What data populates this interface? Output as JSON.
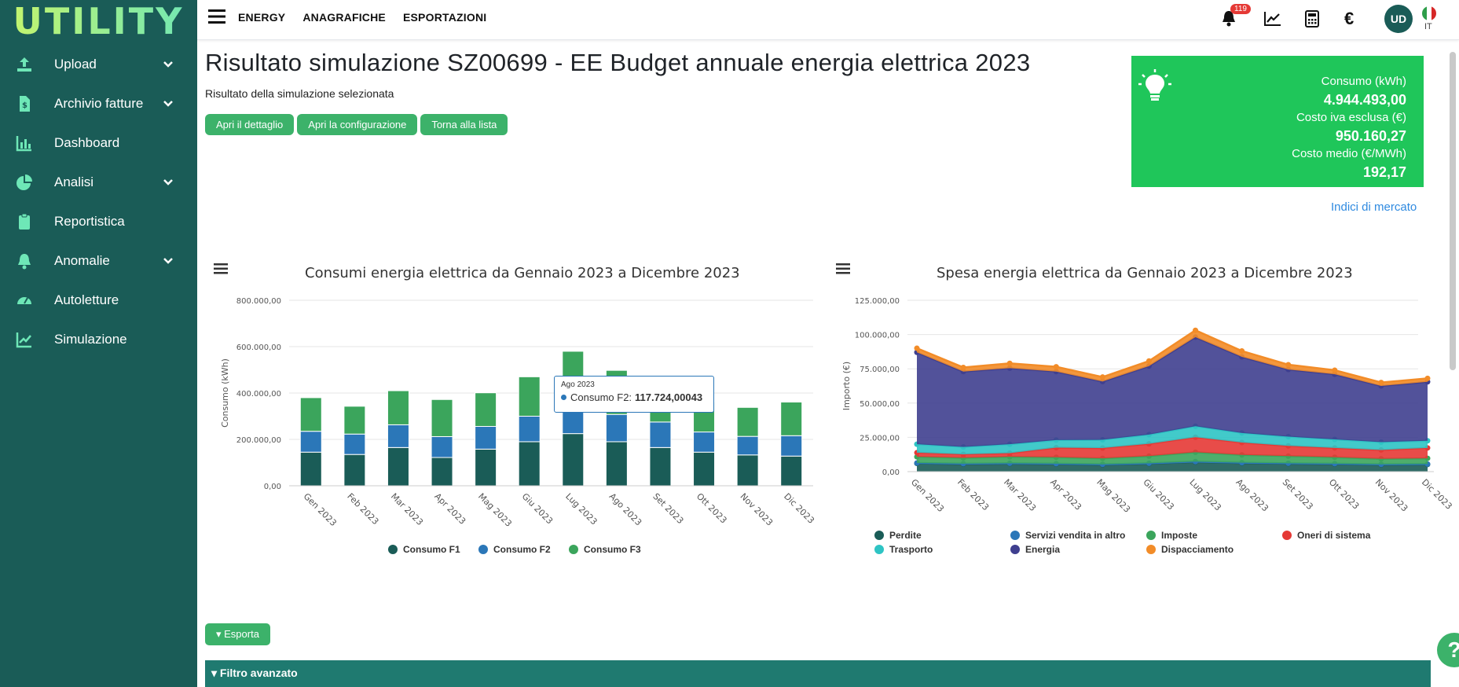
{
  "app": {
    "logo": "UTILITY"
  },
  "sidebar": {
    "items": [
      {
        "label": "Upload",
        "icon": "upload-icon",
        "expandable": true
      },
      {
        "label": "Archivio fatture",
        "icon": "invoice-icon",
        "expandable": true
      },
      {
        "label": "Dashboard",
        "icon": "bar-chart-icon",
        "expandable": false
      },
      {
        "label": "Analisi",
        "icon": "pie-chart-icon",
        "expandable": true
      },
      {
        "label": "Reportistica",
        "icon": "clipboard-icon",
        "expandable": false
      },
      {
        "label": "Anomalie",
        "icon": "bell-icon",
        "expandable": true
      },
      {
        "label": "Autoletture",
        "icon": "gauge-icon",
        "expandable": false
      },
      {
        "label": "Simulazione",
        "icon": "trend-icon",
        "expandable": false
      }
    ]
  },
  "topbar": {
    "menu": [
      "ENERGY",
      "ANAGRAFICHE",
      "ESPORTAZIONI"
    ],
    "notifications": "119",
    "avatar": "UD",
    "lang": "IT"
  },
  "page": {
    "title": "Risultato simulazione SZ00699 - EE Budget annuale energia elettrica 2023",
    "subtitle": "Risultato della simulazione selezionata",
    "buttons": [
      "Apri il dettaglio",
      "Apri la configurazione",
      "Torna alla lista"
    ],
    "market_link": "Indici di mercato",
    "export_label": "Esporta",
    "filter_label": "Filtro avanzato"
  },
  "kpi": {
    "consumo_label": "Consumo (kWh)",
    "consumo_value": "4.944.493,00",
    "costo_label": "Costo iva esclusa (€)",
    "costo_value": "950.160,27",
    "medio_label": "Costo medio (€/MWh)",
    "medio_value": "192,17"
  },
  "chart_data": [
    {
      "type": "bar",
      "stacked": true,
      "title": "Consumi energia elettrica da Gennaio 2023 a Dicembre 2023",
      "ylabel": "Consumo (kWh)",
      "ylim": [
        0,
        800000
      ],
      "yticks": [
        "0,00",
        "200.000,00",
        "400.000,00",
        "600.000,00",
        "800.000,00"
      ],
      "categories": [
        "Gen 2023",
        "Feb 2023",
        "Mar 2023",
        "Apr 2023",
        "Mag 2023",
        "Giu 2023",
        "Lug 2023",
        "Ago 2023",
        "Set 2023",
        "Ott 2023",
        "Nov 2023",
        "Dic 2023"
      ],
      "series": [
        {
          "name": "Consumo F1",
          "color": "#1a5c57",
          "values": [
            145000,
            135000,
            165000,
            122000,
            158000,
            190000,
            225000,
            190000,
            165000,
            145000,
            133000,
            128000
          ]
        },
        {
          "name": "Consumo F2",
          "color": "#2b77b8",
          "values": [
            90000,
            88000,
            98000,
            90000,
            98000,
            110000,
            110000,
            117724,
            110000,
            87000,
            80000,
            88000
          ]
        },
        {
          "name": "Consumo F3",
          "color": "#3ba55c",
          "values": [
            145000,
            120000,
            147000,
            160000,
            145000,
            170000,
            245000,
            190000,
            148000,
            130000,
            125000,
            145000
          ]
        }
      ],
      "legend": "bottom",
      "tooltip": {
        "category": "Ago 2023",
        "series": "Consumo F2",
        "value": "117.724,00043"
      }
    },
    {
      "type": "area",
      "stacked": true,
      "title": "Spesa energia elettrica da Gennaio 2023 a Dicembre 2023",
      "ylabel": "Importo (€)",
      "ylim": [
        0,
        125000
      ],
      "yticks": [
        "0,00",
        "25.000,00",
        "50.000,00",
        "75.000,00",
        "100.000,00",
        "125.000,00"
      ],
      "categories": [
        "Gen 2023",
        "Feb 2023",
        "Mar 2023",
        "Apr 2023",
        "Mag 2023",
        "Giu 2023",
        "Lug 2023",
        "Ago 2023",
        "Set 2023",
        "Ott 2023",
        "Nov 2023",
        "Dic 2023"
      ],
      "series": [
        {
          "name": "Perdite",
          "color": "#1a5c57",
          "values": [
            6000,
            5500,
            5800,
            5500,
            5000,
            5800,
            7000,
            6200,
            5800,
            5500,
            5000,
            5200
          ]
        },
        {
          "name": "Servizi vendita in altro",
          "color": "#2b77b8",
          "values": [
            300,
            300,
            300,
            300,
            300,
            300,
            300,
            300,
            300,
            300,
            300,
            300
          ]
        },
        {
          "name": "Imposte",
          "color": "#3ba55c",
          "values": [
            4500,
            4200,
            4700,
            4700,
            4400,
            5200,
            6800,
            5700,
            5200,
            4700,
            4000,
            4200
          ]
        },
        {
          "name": "Oneri di sistema",
          "color": "#e53935",
          "values": [
            3000,
            2600,
            2700,
            7000,
            7500,
            9000,
            11000,
            9000,
            7500,
            6800,
            6500,
            7600
          ]
        },
        {
          "name": "Trasporto",
          "color": "#2ec4c4",
          "values": [
            6200,
            5400,
            6500,
            5500,
            6000,
            6700,
            8000,
            7000,
            6700,
            6200,
            5700,
            5200
          ]
        },
        {
          "name": "Energia",
          "color": "#3f3f8f",
          "values": [
            67000,
            55000,
            55500,
            50000,
            42500,
            50000,
            65000,
            55500,
            49000,
            47500,
            41000,
            43000
          ]
        },
        {
          "name": "Dispacciamento",
          "color": "#f28c28",
          "values": [
            3000,
            3000,
            3500,
            3500,
            3300,
            3700,
            5000,
            4300,
            3500,
            3000,
            2500,
            2500
          ]
        }
      ],
      "legend": "bottom"
    }
  ]
}
